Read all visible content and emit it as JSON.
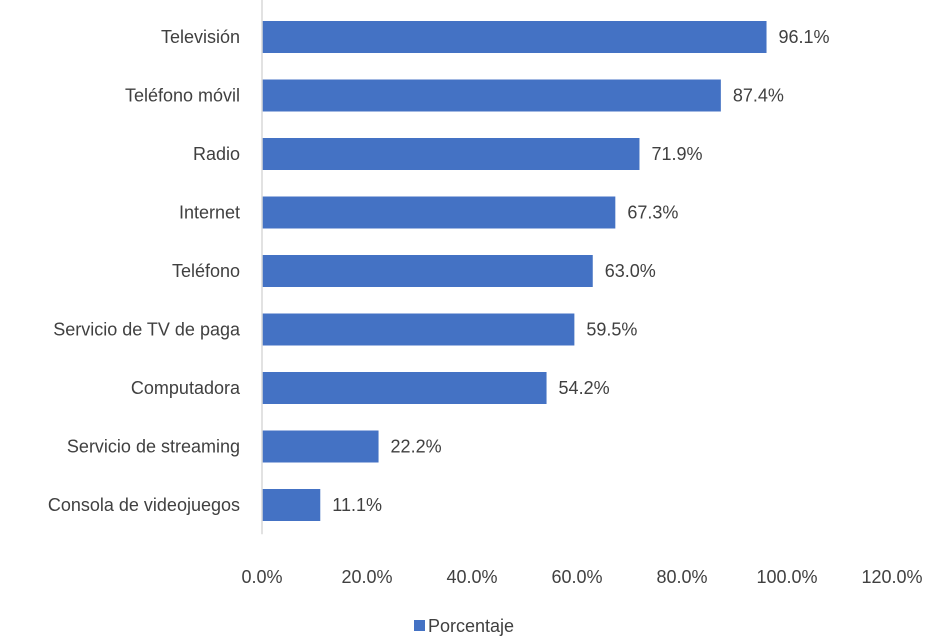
{
  "chart_data": {
    "type": "bar",
    "orientation": "horizontal",
    "categories": [
      "Televisión",
      "Teléfono móvil",
      "Radio",
      "Internet",
      "Teléfono",
      "Servicio de TV de paga",
      "Computadora",
      "Servicio de streaming",
      "Consola de videojuegos"
    ],
    "series": [
      {
        "name": "Porcentaje",
        "values": [
          96.1,
          87.4,
          71.9,
          67.3,
          63.0,
          59.5,
          54.2,
          22.2,
          11.1
        ],
        "labels": [
          "96.1%",
          "87.4%",
          "71.9%",
          "67.3%",
          "63.0%",
          "59.5%",
          "54.2%",
          "22.2%",
          "11.1%"
        ],
        "color": "#4472c4"
      }
    ],
    "xlim": [
      0,
      120
    ],
    "xticks": [
      0,
      20,
      40,
      60,
      80,
      100,
      120
    ],
    "xtick_labels": [
      "0.0%",
      "20.0%",
      "40.0%",
      "60.0%",
      "80.0%",
      "100.0%",
      "120.0%"
    ],
    "grid": false,
    "legend": {
      "position": "bottom",
      "entries": [
        "Porcentaje"
      ]
    },
    "title": "",
    "xlabel": "",
    "ylabel": ""
  }
}
